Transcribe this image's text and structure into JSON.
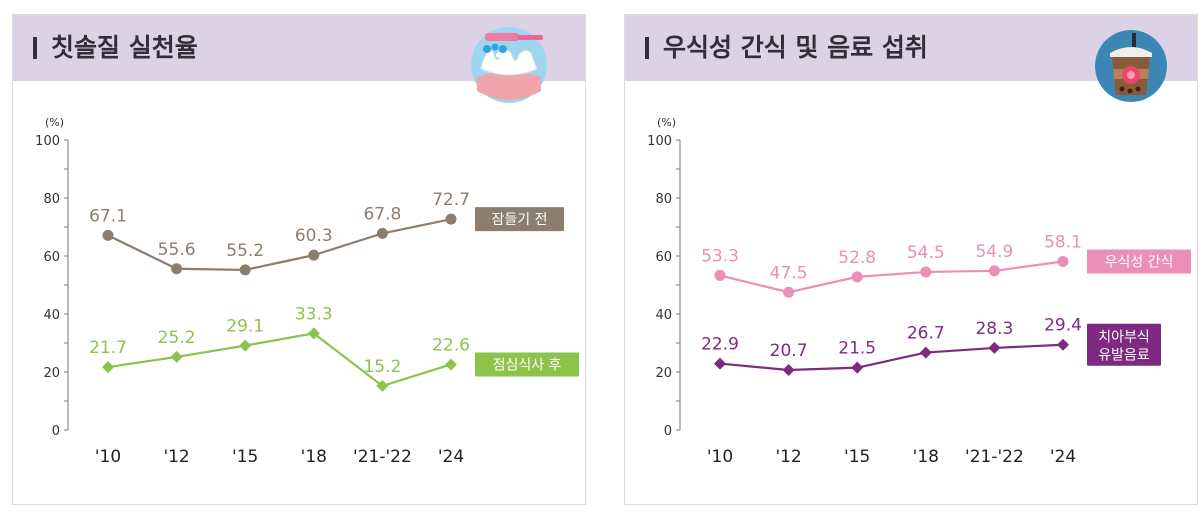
{
  "panels": [
    {
      "title": "칫솔질 실천율",
      "icon": "toothbrush-teeth-icon",
      "chart_data": {
        "type": "line",
        "ylabel": "(%)",
        "ylim": [
          0,
          100
        ],
        "yticks": [
          0,
          20,
          40,
          60,
          80,
          100
        ],
        "categories": [
          "'10",
          "'12",
          "'15",
          "'18",
          "'21-'22",
          "'24"
        ],
        "grid": false,
        "legend": "right-of-lines",
        "series": [
          {
            "name": "잠들기 전",
            "values": [
              67.1,
              55.6,
              55.2,
              60.3,
              67.8,
              72.7
            ],
            "labels": [
              "67.1",
              "55.6",
              "55.2",
              "60.3",
              "67.8",
              "72.7"
            ],
            "color": "#8b7e6e",
            "marker": "circle"
          },
          {
            "name": "점심식사 후",
            "values": [
              21.7,
              25.2,
              29.1,
              33.3,
              15.2,
              22.6
            ],
            "labels": [
              "21.7",
              "25.2",
              "29.1",
              "33.3",
              "15.2",
              "22.6"
            ],
            "color": "#8cc34b",
            "marker": "diamond"
          }
        ]
      }
    },
    {
      "title": "우식성 간식 및 음료 섭취",
      "icon": "bubble-tea-cup-icon",
      "chart_data": {
        "type": "line",
        "ylabel": "(%)",
        "ylim": [
          0,
          100
        ],
        "yticks": [
          0,
          20,
          40,
          60,
          80,
          100
        ],
        "categories": [
          "'10",
          "'12",
          "'15",
          "'18",
          "'21-'22",
          "'24"
        ],
        "grid": false,
        "legend": "right-of-lines",
        "series": [
          {
            "name": "우식성 간식",
            "values": [
              53.3,
              47.5,
              52.8,
              54.5,
              54.9,
              58.1
            ],
            "labels": [
              "53.3",
              "47.5",
              "52.8",
              "54.5",
              "54.9",
              "58.1"
            ],
            "color": "#ea8fb8",
            "marker": "circle"
          },
          {
            "name": "치아부식 유발음료",
            "values": [
              22.9,
              20.7,
              21.5,
              26.7,
              28.3,
              29.4
            ],
            "labels": [
              "22.9",
              "20.7",
              "21.5",
              "26.7",
              "28.3",
              "29.4"
            ],
            "color": "#7e2a82",
            "marker": "diamond"
          }
        ]
      }
    }
  ]
}
